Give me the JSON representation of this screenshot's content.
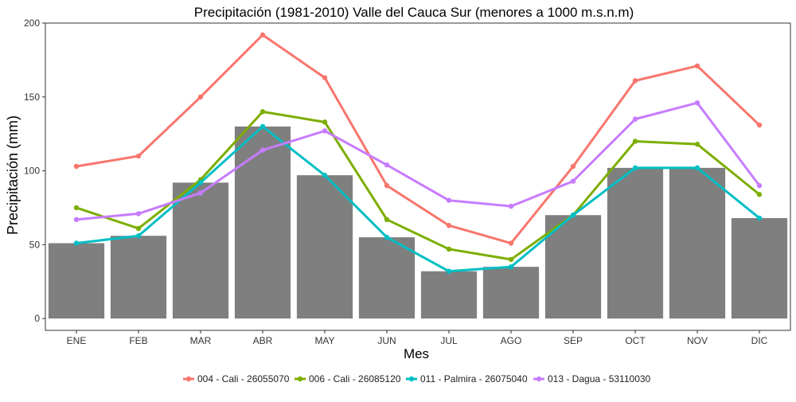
{
  "chart_data": {
    "type": "bar",
    "title": "Precipitación (1981-2010) Valle del Cauca Sur (menores a 1000 m.s.n.m)",
    "xlabel": "Mes",
    "ylabel": "Precipitación (mm)",
    "ylim": [
      -8,
      200
    ],
    "y_ticks": [
      0,
      50,
      100,
      150,
      200
    ],
    "grid": false,
    "legend_position": "bottom",
    "categories": [
      "ENE",
      "FEB",
      "MAR",
      "ABR",
      "MAY",
      "JUN",
      "JUL",
      "AGO",
      "SEP",
      "OCT",
      "NOV",
      "DIC"
    ],
    "bar_color": "#7f7f7f",
    "bars": [
      51,
      56,
      92,
      130,
      97,
      55,
      32,
      35,
      70,
      102,
      102,
      68
    ],
    "series": [
      {
        "name": "004 - Cali - 26055070",
        "color": "#F8766D",
        "values": [
          103,
          110,
          150,
          192,
          163,
          90,
          63,
          51,
          103,
          161,
          171,
          131
        ]
      },
      {
        "name": "006 - Cali - 26085120",
        "color": "#7CAE00",
        "values": [
          75,
          61,
          94,
          140,
          133,
          67,
          47,
          40,
          70,
          120,
          118,
          84
        ]
      },
      {
        "name": "011 - Palmira - 26075040",
        "color": "#00BFC4",
        "values": [
          51,
          56,
          92,
          130,
          97,
          55,
          32,
          35,
          70,
          102,
          102,
          68
        ]
      },
      {
        "name": "013 - Dagua - 53110030",
        "color": "#C77CFF",
        "values": [
          67,
          71,
          85,
          114,
          127,
          104,
          80,
          76,
          93,
          135,
          146,
          90
        ]
      }
    ]
  }
}
